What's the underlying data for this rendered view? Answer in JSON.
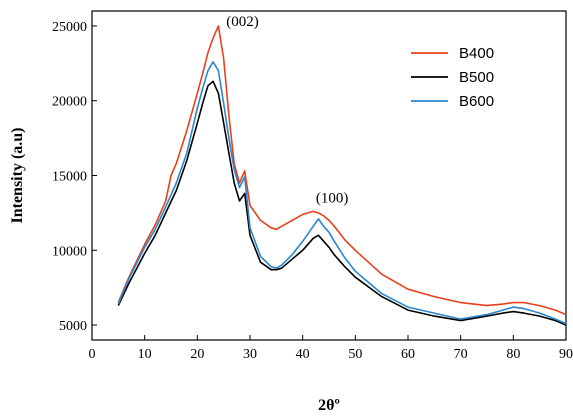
{
  "chart_data": {
    "type": "line",
    "title": "",
    "xlabel": "2θº",
    "ylabel": "Intensity (a.u)",
    "xlim": [
      0,
      90
    ],
    "ylim": [
      4000,
      26000
    ],
    "xticks": [
      0,
      10,
      20,
      30,
      40,
      50,
      60,
      70,
      80,
      90
    ],
    "yticks": [
      5000,
      10000,
      15000,
      20000,
      25000
    ],
    "grid": false,
    "legend_position": "top-right",
    "annotations": [
      {
        "text": "(002)",
        "x": 25.5,
        "y": 25000
      },
      {
        "text": "(100)",
        "x": 42.5,
        "y": 13200
      }
    ],
    "series": [
      {
        "name": "B400",
        "color": "#e8401c",
        "x": [
          5,
          7,
          10,
          12,
          14,
          15,
          16,
          18,
          20,
          21,
          22,
          23,
          24,
          25,
          26,
          27,
          28,
          29,
          30,
          32,
          34,
          35,
          36,
          38,
          40,
          42,
          43,
          44,
          45,
          46,
          48,
          50,
          55,
          60,
          65,
          70,
          75,
          78,
          80,
          82,
          85,
          88,
          90
        ],
        "y": [
          6500,
          8200,
          10400,
          11700,
          13300,
          15000,
          15800,
          18000,
          20500,
          21800,
          23200,
          24200,
          25000,
          22800,
          19000,
          15800,
          14500,
          15300,
          13000,
          12000,
          11500,
          11400,
          11600,
          12000,
          12400,
          12600,
          12500,
          12300,
          12000,
          11600,
          10700,
          10000,
          8400,
          7400,
          6900,
          6500,
          6300,
          6400,
          6500,
          6500,
          6300,
          6000,
          5700
        ]
      },
      {
        "name": "B500",
        "color": "#000000",
        "x": [
          5,
          7,
          10,
          12,
          14,
          16,
          18,
          20,
          21,
          22,
          23,
          24,
          25,
          26,
          27,
          28,
          29,
          30,
          32,
          34,
          35,
          36,
          38,
          40,
          42,
          43,
          44,
          45,
          46,
          48,
          50,
          55,
          60,
          65,
          70,
          75,
          78,
          80,
          82,
          85,
          88,
          90
        ],
        "y": [
          6300,
          7800,
          9800,
          11000,
          12500,
          14000,
          16000,
          18500,
          19800,
          21000,
          21300,
          20500,
          18500,
          16500,
          14500,
          13300,
          13800,
          11000,
          9200,
          8700,
          8700,
          8800,
          9400,
          10000,
          10800,
          11000,
          10600,
          10200,
          9700,
          8900,
          8200,
          6900,
          6000,
          5600,
          5300,
          5600,
          5800,
          5900,
          5800,
          5600,
          5300,
          5000
        ]
      },
      {
        "name": "B600",
        "color": "#2a86cf",
        "x": [
          5,
          7,
          10,
          12,
          14,
          16,
          18,
          20,
          21,
          22,
          23,
          24,
          25,
          26,
          27,
          28,
          29,
          30,
          32,
          34,
          35,
          36,
          38,
          40,
          42,
          43,
          44,
          45,
          46,
          48,
          50,
          55,
          60,
          65,
          70,
          75,
          78,
          80,
          82,
          85,
          88,
          90
        ],
        "y": [
          6400,
          8100,
          10200,
          11400,
          12900,
          14500,
          16500,
          19500,
          20800,
          22000,
          22600,
          22000,
          19800,
          17500,
          15400,
          14200,
          14900,
          11500,
          9600,
          8900,
          8800,
          9000,
          9700,
          10600,
          11600,
          12100,
          11600,
          11200,
          10600,
          9500,
          8600,
          7100,
          6200,
          5800,
          5400,
          5700,
          6000,
          6200,
          6100,
          5800,
          5400,
          5100
        ]
      }
    ]
  }
}
